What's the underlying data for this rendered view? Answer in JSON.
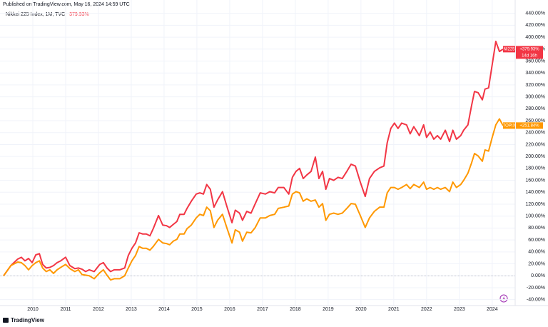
{
  "chart_data": {
    "type": "line",
    "published": "Published on TradingView.com, May 16, 2024 14:59 UTC",
    "title": "Nikkei 225 Index, 1M, TVC",
    "title_change": "379.93%",
    "countdown": "14d 16h",
    "brand": "TradingView",
    "grid": true,
    "zero_line": true,
    "xlim": [
      2009.0,
      2024.7
    ],
    "ylim": [
      -50,
      448
    ],
    "xticks": [
      2010,
      2011,
      2012,
      2013,
      2014,
      2015,
      2016,
      2017,
      2018,
      2019,
      2020,
      2021,
      2022,
      2023,
      2024
    ],
    "yticks": [
      {
        "value": -40,
        "label": "-40.00%"
      },
      {
        "value": -20,
        "label": "-20.00%"
      },
      {
        "value": 0,
        "label": "0.00%"
      },
      {
        "value": 20,
        "label": "20.00%"
      },
      {
        "value": 40,
        "label": "40.00%"
      },
      {
        "value": 60,
        "label": "60.00%"
      },
      {
        "value": 80,
        "label": "80.00%"
      },
      {
        "value": 100,
        "label": "100.00%"
      },
      {
        "value": 120,
        "label": "120.00%"
      },
      {
        "value": 140,
        "label": "140.00%"
      },
      {
        "value": 160,
        "label": "160.00%"
      },
      {
        "value": 180,
        "label": "180.00%"
      },
      {
        "value": 200,
        "label": "200.00%"
      },
      {
        "value": 220,
        "label": "220.00%"
      },
      {
        "value": 240,
        "label": "240.00%"
      },
      {
        "value": 260,
        "label": "260.00%"
      },
      {
        "value": 280,
        "label": "280.00%"
      },
      {
        "value": 300,
        "label": "300.00%"
      },
      {
        "value": 320,
        "label": "320.00%"
      },
      {
        "value": 340,
        "label": "340.00%"
      },
      {
        "value": 360,
        "label": "360.00%"
      },
      {
        "value": 380,
        "label": "380.00%"
      },
      {
        "value": 400,
        "label": "400.00%"
      },
      {
        "value": 420,
        "label": "420.00%"
      },
      {
        "value": 440,
        "label": "440.00%"
      }
    ],
    "x": [
      2009.11,
      2009.33,
      2009.54,
      2009.65,
      2009.76,
      2009.87,
      2009.98,
      2010.09,
      2010.2,
      2010.3,
      2010.41,
      2010.52,
      2010.63,
      2010.74,
      2010.85,
      2011.0,
      2011.13,
      2011.28,
      2011.39,
      2011.5,
      2011.61,
      2011.72,
      2011.87,
      2012.04,
      2012.15,
      2012.26,
      2012.37,
      2012.48,
      2012.65,
      2012.8,
      2012.91,
      2013.02,
      2013.13,
      2013.24,
      2013.35,
      2013.46,
      2013.57,
      2013.67,
      2013.83,
      2013.96,
      2014.07,
      2014.17,
      2014.28,
      2014.39,
      2014.48,
      2014.61,
      2014.7,
      2014.83,
      2014.98,
      2015.09,
      2015.2,
      2015.3,
      2015.41,
      2015.52,
      2015.63,
      2015.78,
      2015.91,
      2016.07,
      2016.17,
      2016.3,
      2016.39,
      2016.52,
      2016.65,
      2016.78,
      2016.93,
      2017.09,
      2017.22,
      2017.37,
      2017.48,
      2017.65,
      2017.8,
      2017.91,
      2018.02,
      2018.13,
      2018.24,
      2018.35,
      2018.48,
      2018.61,
      2018.72,
      2018.83,
      2018.93,
      2019.04,
      2019.17,
      2019.3,
      2019.43,
      2019.57,
      2019.7,
      2019.83,
      2019.98,
      2020.13,
      2020.26,
      2020.41,
      2020.57,
      2020.7,
      2020.8,
      2020.91,
      2021.02,
      2021.13,
      2021.24,
      2021.39,
      2021.5,
      2021.61,
      2021.78,
      2021.91,
      2022.0,
      2022.11,
      2022.22,
      2022.33,
      2022.43,
      2022.57,
      2022.7,
      2022.8,
      2022.91,
      2023.04,
      2023.13,
      2023.26,
      2023.37,
      2023.46,
      2023.57,
      2023.7,
      2023.78,
      2023.89,
      2024.0,
      2024.11,
      2024.22,
      2024.33
    ],
    "series": [
      {
        "name": "NI225",
        "color": "#f23645",
        "last_label": "+379.93%",
        "values": [
          0,
          17,
          28,
          31,
          25,
          29,
          22,
          35,
          37,
          19,
          13,
          14,
          17,
          22,
          25,
          31,
          17,
          12,
          13,
          11,
          7,
          10,
          7,
          19,
          22,
          13,
          7,
          10,
          10,
          13,
          34,
          46,
          55,
          72,
          70,
          70,
          67,
          79,
          101,
          85,
          84,
          81,
          86,
          91,
          103,
          103,
          113,
          125,
          137,
          139,
          137,
          153,
          145,
          115,
          127,
          141,
          117,
          89,
          110,
          105,
          93,
          108,
          105,
          121,
          139,
          137,
          141,
          139,
          148,
          148,
          137,
          165,
          175,
          180,
          163,
          169,
          175,
          199,
          163,
          175,
          145,
          163,
          160,
          165,
          163,
          175,
          187,
          184,
          157,
          133,
          163,
          175,
          181,
          184,
          223,
          247,
          256,
          247,
          256,
          253,
          238,
          250,
          235,
          253,
          232,
          241,
          229,
          235,
          229,
          244,
          225,
          244,
          229,
          235,
          244,
          253,
          285,
          309,
          307,
          295,
          313,
          315,
          354,
          393,
          376,
          379.93
        ]
      },
      {
        "name": "TOPIX",
        "color": "#ff9800",
        "last_label": "+251.84%",
        "values": [
          0,
          17,
          23,
          22,
          17,
          10,
          17,
          22,
          25,
          13,
          7,
          10,
          4,
          10,
          14,
          19,
          12,
          7,
          10,
          2,
          1,
          0,
          -5,
          5,
          10,
          1,
          -7,
          -5,
          -5,
          0,
          13,
          25,
          34,
          49,
          46,
          46,
          43,
          49,
          61,
          55,
          54,
          52,
          58,
          61,
          70,
          70,
          79,
          85,
          97,
          103,
          101,
          115,
          109,
          81,
          93,
          103,
          81,
          55,
          77,
          73,
          58,
          73,
          72,
          81,
          97,
          97,
          101,
          103,
          113,
          115,
          117,
          137,
          141,
          139,
          125,
          129,
          125,
          127,
          115,
          121,
          93,
          103,
          105,
          103,
          105,
          113,
          121,
          120,
          101,
          81,
          97,
          108,
          115,
          115,
          139,
          148,
          148,
          145,
          148,
          153,
          146,
          153,
          148,
          157,
          145,
          148,
          145,
          148,
          145,
          148,
          141,
          157,
          148,
          153,
          160,
          172,
          189,
          205,
          201,
          192,
          211,
          209,
          232,
          253,
          263,
          251.84
        ]
      }
    ]
  }
}
